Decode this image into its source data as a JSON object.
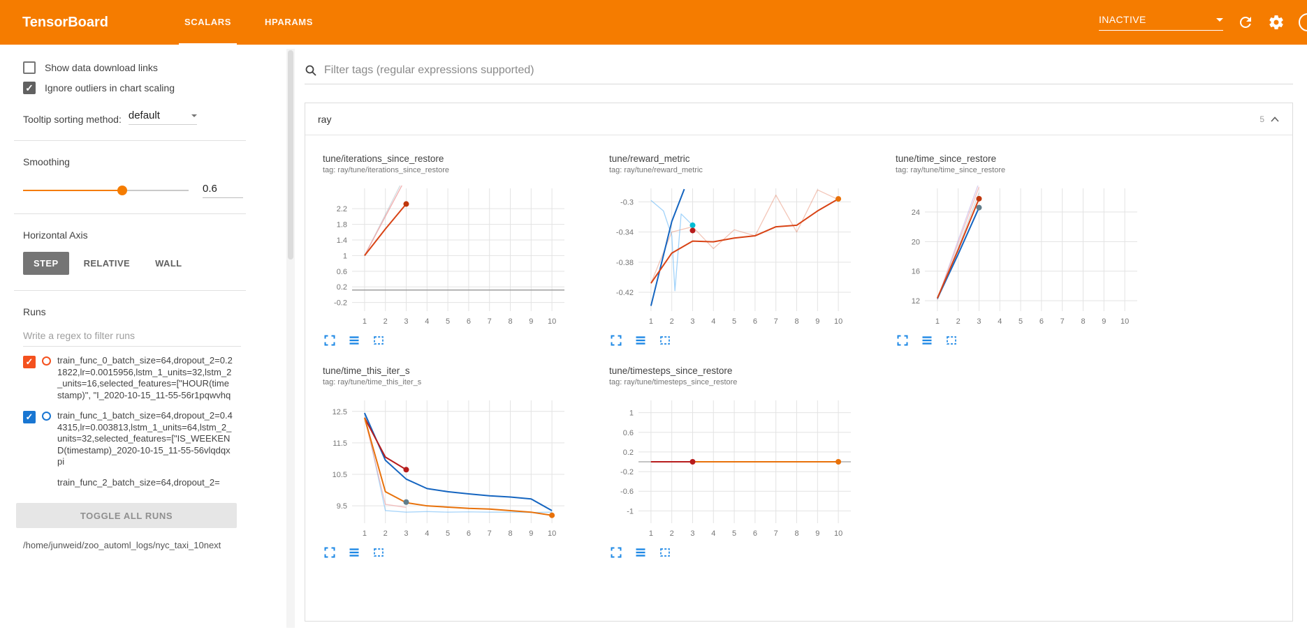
{
  "header": {
    "title": "TensorBoard",
    "tabs": [
      {
        "label": "SCALARS",
        "active": true
      },
      {
        "label": "HPARAMS",
        "active": false
      }
    ],
    "status_dropdown": "INACTIVE"
  },
  "sidebar": {
    "checkboxes": [
      {
        "label": "Show data download links",
        "checked": false
      },
      {
        "label": "Ignore outliers in chart scaling",
        "checked": true
      }
    ],
    "tooltip_sorting": {
      "label": "Tooltip sorting method:",
      "value": "default"
    },
    "smoothing": {
      "label": "Smoothing",
      "value": "0.6",
      "percent": 60
    },
    "horizontal_axis": {
      "label": "Horizontal Axis",
      "options": [
        "STEP",
        "RELATIVE",
        "WALL"
      ],
      "selected": "STEP"
    },
    "runs": {
      "label": "Runs",
      "filter_placeholder": "Write a regex to filter runs",
      "items": [
        {
          "name": "train_func_0_batch_size=64,dropout_2=0.21822,lr=0.0015956,lstm_1_units=32,lstm_2_units=16,selected_features=[\"HOUR(timestamp)\", \"I_2020-10-15_11-55-56r1pqwvhq",
          "checked": true,
          "color": "#f4511e",
          "controls_hidden": false
        },
        {
          "name": "train_func_1_batch_size=64,dropout_2=0.44315,lr=0.003813,lstm_1_units=64,lstm_2_units=32,selected_features=[\"IS_WEEKEND(timestamp)_2020-10-15_11-55-56vlqdqxpi",
          "checked": true,
          "color": "#1976d2",
          "controls_hidden": false
        },
        {
          "name": "train_func_2_batch_size=64,dropout_2=",
          "checked": true,
          "color": "#f4511e",
          "controls_hidden": true
        }
      ],
      "toggle_all_label": "TOGGLE ALL RUNS",
      "log_path": "/home/junweid/zoo_automl_logs/nyc_taxi_10next"
    }
  },
  "main": {
    "tag_filter_placeholder": "Filter tags (regular expressions supported)",
    "section": {
      "name": "ray",
      "count": "5"
    },
    "chart_toolbar_icons": [
      "expand-icon",
      "runs-lines-icon",
      "fit-domain-icon"
    ]
  },
  "colors": {
    "header_bg": "#f57c00",
    "accent": "#f57c00",
    "toolbar_icon": "#1e88e5",
    "grid_line": "#e3e3e3"
  },
  "chart_data": [
    {
      "type": "line",
      "title": "tune/iterations_since_restore",
      "tag_line": "tag: ray/tune/iterations_since_restore",
      "xlim": [
        0.4,
        10.6
      ],
      "ylim": [
        -0.42,
        2.72
      ],
      "x_ticks": [
        1,
        2,
        3,
        4,
        5,
        6,
        7,
        8,
        9,
        10
      ],
      "y_ticks": [
        -0.2,
        0.2,
        0.6,
        1,
        1.4,
        1.8,
        2.2
      ],
      "series": [
        {
          "color": "#b0bec5",
          "opacity": 0.55,
          "width": 1.3,
          "x": [
            1,
            2,
            3
          ],
          "y": [
            1,
            2.05,
            3.1
          ]
        },
        {
          "color": "#ef9a9a",
          "opacity": 0.8,
          "width": 1.3,
          "x": [
            1,
            2,
            3
          ],
          "y": [
            1,
            2,
            3
          ]
        },
        {
          "color": "#9e9e9e",
          "opacity": 1,
          "width": 1.5,
          "x": [
            0.4,
            10.6
          ],
          "y": [
            0.12,
            0.12
          ]
        },
        {
          "color": "#d84315",
          "opacity": 1,
          "width": 2,
          "x": [
            1,
            2,
            3
          ],
          "y": [
            1,
            1.68,
            2.32
          ]
        }
      ],
      "dots": [
        {
          "x": 3,
          "y": 2.32,
          "color": "#bf360c"
        }
      ]
    },
    {
      "type": "line",
      "title": "tune/reward_metric",
      "tag_line": "tag: ray/tune/reward_metric",
      "xlim": [
        0.4,
        10.6
      ],
      "ylim": [
        -0.445,
        -0.282
      ],
      "x_ticks": [
        1,
        2,
        3,
        4,
        5,
        6,
        7,
        8,
        9,
        10
      ],
      "y_ticks": [
        -0.42,
        -0.38,
        -0.34,
        -0.3
      ],
      "series": [
        {
          "color": "#d84315",
          "opacity": 0.3,
          "width": 1.3,
          "x": [
            1,
            2,
            3,
            4,
            5,
            6,
            7,
            8,
            9,
            10
          ],
          "y": [
            -0.408,
            -0.34,
            -0.333,
            -0.362,
            -0.337,
            -0.345,
            -0.291,
            -0.34,
            -0.284,
            -0.297
          ]
        },
        {
          "color": "#64b5f6",
          "opacity": 0.6,
          "width": 1.3,
          "x": [
            1,
            1.6,
            2,
            2.15,
            2.45,
            3
          ],
          "y": [
            -0.298,
            -0.312,
            -0.345,
            -0.418,
            -0.316,
            -0.331
          ]
        },
        {
          "color": "#1565c0",
          "opacity": 1,
          "width": 2,
          "x": [
            1,
            2,
            2.6
          ],
          "y": [
            -0.438,
            -0.326,
            -0.283
          ]
        },
        {
          "color": "#d84315",
          "opacity": 1,
          "width": 2,
          "x": [
            1,
            2,
            3,
            4,
            5,
            6,
            7,
            8,
            9,
            10
          ],
          "y": [
            -0.408,
            -0.368,
            -0.352,
            -0.353,
            -0.348,
            -0.345,
            -0.333,
            -0.331,
            -0.312,
            -0.296
          ]
        }
      ],
      "dots": [
        {
          "x": 3,
          "y": -0.331,
          "color": "#00bcd4"
        },
        {
          "x": 3,
          "y": -0.338,
          "color": "#b71c1c"
        },
        {
          "x": 10,
          "y": -0.296,
          "color": "#e8710a"
        }
      ]
    },
    {
      "type": "line",
      "title": "tune/time_since_restore",
      "tag_line": "tag: ray/tune/time_since_restore",
      "xlim": [
        0.4,
        10.6
      ],
      "ylim": [
        10.6,
        27.2
      ],
      "x_ticks": [
        1,
        2,
        3,
        4,
        5,
        6,
        7,
        8,
        9,
        10
      ],
      "y_ticks": [
        12,
        16,
        20,
        24
      ],
      "series": [
        {
          "color": "#b39ddb",
          "opacity": 0.5,
          "width": 1.3,
          "x": [
            1,
            2,
            3
          ],
          "y": [
            12.2,
            20.2,
            28
          ]
        },
        {
          "color": "#b0bec5",
          "opacity": 0.6,
          "width": 1.3,
          "x": [
            1,
            2,
            3
          ],
          "y": [
            12.1,
            19.2,
            26.6
          ]
        },
        {
          "color": "#ef9a9a",
          "opacity": 0.6,
          "width": 1.3,
          "x": [
            1,
            2,
            3
          ],
          "y": [
            12.2,
            19.8,
            27.4
          ]
        },
        {
          "color": "#1565c0",
          "opacity": 1,
          "width": 2,
          "x": [
            1,
            2,
            3
          ],
          "y": [
            12.3,
            18.3,
            24.6
          ]
        },
        {
          "color": "#d84315",
          "opacity": 1,
          "width": 2,
          "x": [
            1,
            2,
            3
          ],
          "y": [
            12.35,
            18.9,
            25.8
          ]
        }
      ],
      "dots": [
        {
          "x": 3,
          "y": 25.8,
          "color": "#bf360c"
        },
        {
          "x": 3,
          "y": 24.6,
          "color": "#607d8b"
        }
      ]
    },
    {
      "type": "line",
      "title": "tune/time_this_iter_s",
      "tag_line": "tag: ray/tune/time_this_iter_s",
      "xlim": [
        0.4,
        10.6
      ],
      "ylim": [
        8.95,
        12.85
      ],
      "x_ticks": [
        1,
        2,
        3,
        4,
        5,
        6,
        7,
        8,
        9,
        10
      ],
      "y_ticks": [
        9.5,
        10.5,
        11.5,
        12.5
      ],
      "series": [
        {
          "color": "#64b5f6",
          "opacity": 0.55,
          "width": 1.3,
          "x": [
            1,
            2,
            3,
            4,
            5,
            6,
            7,
            8,
            9,
            10
          ],
          "y": [
            12.45,
            9.35,
            9.3,
            9.32,
            9.3,
            9.31,
            9.3,
            9.3,
            9.29,
            9.3
          ]
        },
        {
          "color": "#ef9a9a",
          "opacity": 0.6,
          "width": 1.3,
          "x": [
            1,
            2,
            3
          ],
          "y": [
            12.3,
            9.55,
            9.45
          ]
        },
        {
          "color": "#1565c0",
          "opacity": 1,
          "width": 2,
          "x": [
            1,
            2,
            3,
            4,
            5,
            6,
            7,
            8,
            9,
            10
          ],
          "y": [
            12.45,
            10.95,
            10.35,
            10.05,
            9.95,
            9.88,
            9.82,
            9.78,
            9.72,
            9.35
          ]
        },
        {
          "color": "#b71c1c",
          "opacity": 1,
          "width": 2,
          "x": [
            1,
            2,
            3
          ],
          "y": [
            12.3,
            11.05,
            10.65
          ]
        },
        {
          "color": "#e8710a",
          "opacity": 1,
          "width": 2,
          "x": [
            1,
            2,
            3,
            4,
            5,
            6,
            7,
            8,
            9,
            10
          ],
          "y": [
            12.3,
            9.95,
            9.6,
            9.5,
            9.46,
            9.42,
            9.4,
            9.35,
            9.3,
            9.2
          ]
        }
      ],
      "dots": [
        {
          "x": 3,
          "y": 10.65,
          "color": "#b71c1c"
        },
        {
          "x": 3,
          "y": 9.62,
          "color": "#607d8b"
        },
        {
          "x": 10,
          "y": 9.2,
          "color": "#e8710a"
        }
      ]
    },
    {
      "type": "line",
      "title": "tune/timesteps_since_restore",
      "tag_line": "tag: ray/tune/timesteps_since_restore",
      "xlim": [
        0.4,
        10.6
      ],
      "ylim": [
        -1.25,
        1.25
      ],
      "x_ticks": [
        1,
        2,
        3,
        4,
        5,
        6,
        7,
        8,
        9,
        10
      ],
      "y_ticks": [
        -1,
        -0.6,
        -0.2,
        0.2,
        0.6,
        1
      ],
      "series": [
        {
          "color": "#9e9e9e",
          "opacity": 0.8,
          "width": 1.4,
          "x": [
            0.4,
            10.6
          ],
          "y": [
            0,
            0
          ]
        },
        {
          "color": "#e8710a",
          "opacity": 1,
          "width": 2,
          "x": [
            1,
            10
          ],
          "y": [
            0,
            0
          ]
        },
        {
          "color": "#b71c1c",
          "opacity": 1,
          "width": 2,
          "x": [
            1,
            3
          ],
          "y": [
            0,
            0
          ]
        }
      ],
      "dots": [
        {
          "x": 3,
          "y": 0,
          "color": "#b71c1c"
        },
        {
          "x": 10,
          "y": 0,
          "color": "#e8710a"
        }
      ]
    }
  ]
}
